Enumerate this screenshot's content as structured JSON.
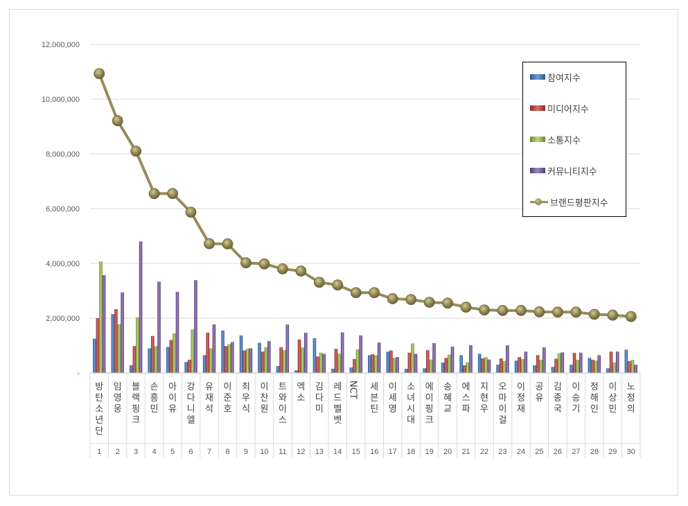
{
  "chart_data": {
    "type": "bar",
    "categories": [
      "방탄소년단",
      "임영웅",
      "블랙핑크",
      "손흥민",
      "아이유",
      "강다니엘",
      "유재석",
      "이준호",
      "최우식",
      "이찬원",
      "트와이스",
      "엑소",
      "김다미",
      "레드벨벳",
      "NCT",
      "세븐틴",
      "이세영",
      "소녀시대",
      "에이핑크",
      "송혜교",
      "에스파",
      "지현우",
      "오마이걸",
      "이정재",
      "공유",
      "김종국",
      "이승기",
      "정해인",
      "이상민",
      "노정의"
    ],
    "ranks": [
      "1",
      "2",
      "3",
      "4",
      "5",
      "6",
      "7",
      "8",
      "9",
      "10",
      "11",
      "12",
      "13",
      "14",
      "15",
      "16",
      "17",
      "18",
      "19",
      "20",
      "21",
      "22",
      "23",
      "24",
      "25",
      "26",
      "27",
      "28",
      "29",
      "30"
    ],
    "ylim": [
      0,
      12000000
    ],
    "yticks": [
      {
        "value": 0,
        "label": "-"
      },
      {
        "value": 2000000,
        "label": "2,000,000"
      },
      {
        "value": 4000000,
        "label": "4,000,000"
      },
      {
        "value": 6000000,
        "label": "6,000,000"
      },
      {
        "value": 8000000,
        "label": "8,000,000"
      },
      {
        "value": 10000000,
        "label": "10,000,000"
      },
      {
        "value": 12000000,
        "label": "12,000,000"
      }
    ],
    "grid": true,
    "legend_position": "top-right",
    "series": [
      {
        "name": "참여지수",
        "kind": "bar",
        "color": "#4f81bd",
        "values": [
          1250000,
          2150000,
          280000,
          900000,
          950000,
          400000,
          650000,
          1550000,
          1370000,
          1100000,
          250000,
          100000,
          1270000,
          150000,
          200000,
          650000,
          780000,
          150000,
          170000,
          380000,
          650000,
          700000,
          300000,
          450000,
          280000,
          220000,
          300000,
          550000,
          170000,
          850000
        ]
      },
      {
        "name": "미디어지수",
        "kind": "bar",
        "color": "#c0504d",
        "values": [
          2000000,
          2330000,
          980000,
          1350000,
          1200000,
          480000,
          1470000,
          980000,
          820000,
          780000,
          940000,
          1220000,
          600000,
          880000,
          510000,
          680000,
          820000,
          740000,
          830000,
          550000,
          280000,
          530000,
          530000,
          580000,
          650000,
          520000,
          730000,
          480000,
          780000,
          430000
        ]
      },
      {
        "name": "소통지수",
        "kind": "bar",
        "color": "#9bbb59",
        "values": [
          4070000,
          1780000,
          2030000,
          980000,
          1450000,
          1590000,
          900000,
          1050000,
          890000,
          940000,
          830000,
          930000,
          740000,
          700000,
          860000,
          650000,
          550000,
          1080000,
          490000,
          670000,
          390000,
          580000,
          430000,
          510000,
          480000,
          720000,
          480000,
          450000,
          380000,
          480000
        ]
      },
      {
        "name": "커뮤니티지수",
        "kind": "bar",
        "color": "#8064a2",
        "values": [
          3570000,
          2940000,
          4800000,
          3330000,
          2960000,
          3390000,
          1770000,
          1130000,
          900000,
          1160000,
          1770000,
          1470000,
          700000,
          1480000,
          1370000,
          1110000,
          580000,
          700000,
          1090000,
          960000,
          1010000,
          490000,
          1010000,
          780000,
          930000,
          750000,
          740000,
          650000,
          780000,
          300000
        ]
      },
      {
        "name": "브랜드평판지수",
        "kind": "line",
        "color": "#958c5a",
        "values": [
          10930000,
          9210000,
          8100000,
          6550000,
          6550000,
          5870000,
          4720000,
          4710000,
          4020000,
          3980000,
          3800000,
          3720000,
          3310000,
          3210000,
          2930000,
          2930000,
          2710000,
          2680000,
          2580000,
          2550000,
          2400000,
          2300000,
          2280000,
          2280000,
          2230000,
          2220000,
          2220000,
          2140000,
          2110000,
          2060000
        ]
      }
    ]
  }
}
